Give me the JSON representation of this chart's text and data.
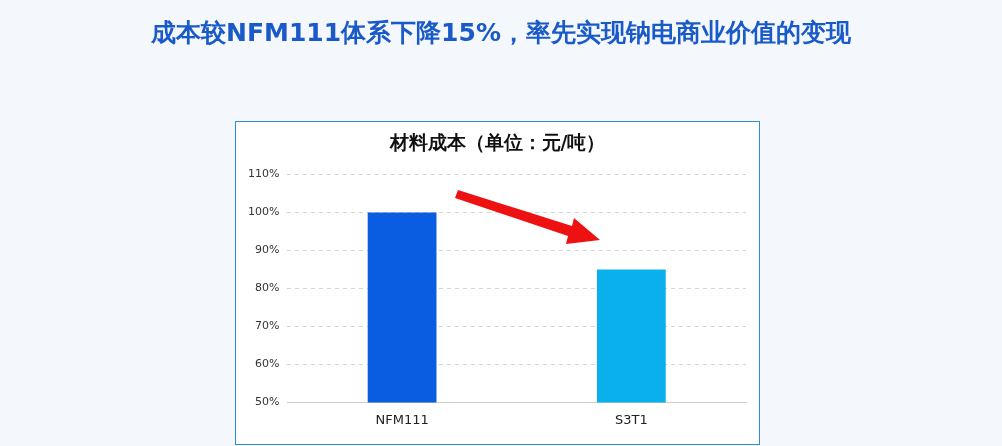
{
  "chart_data": {
    "type": "bar",
    "title": "成本较NFM111体系下降15%，率先实现钠电商业价值的变现",
    "subtitle": "材料成本（单位：元/吨）",
    "categories": [
      "NFM111",
      "S3T1"
    ],
    "series": [
      {
        "colors": [
          "#0a5ce0",
          "#0ab0ec"
        ],
        "values": [
          100,
          85
        ]
      }
    ],
    "ylim": [
      50,
      110
    ],
    "yticks": [
      {
        "value": 50,
        "label": "50%"
      },
      {
        "value": 60,
        "label": "60%"
      },
      {
        "value": 70,
        "label": "70%"
      },
      {
        "value": 80,
        "label": "80%"
      },
      {
        "value": 90,
        "label": "90%"
      },
      {
        "value": 100,
        "label": "100%"
      },
      {
        "value": 110,
        "label": "110%"
      }
    ],
    "grid": "y",
    "legend": false
  }
}
